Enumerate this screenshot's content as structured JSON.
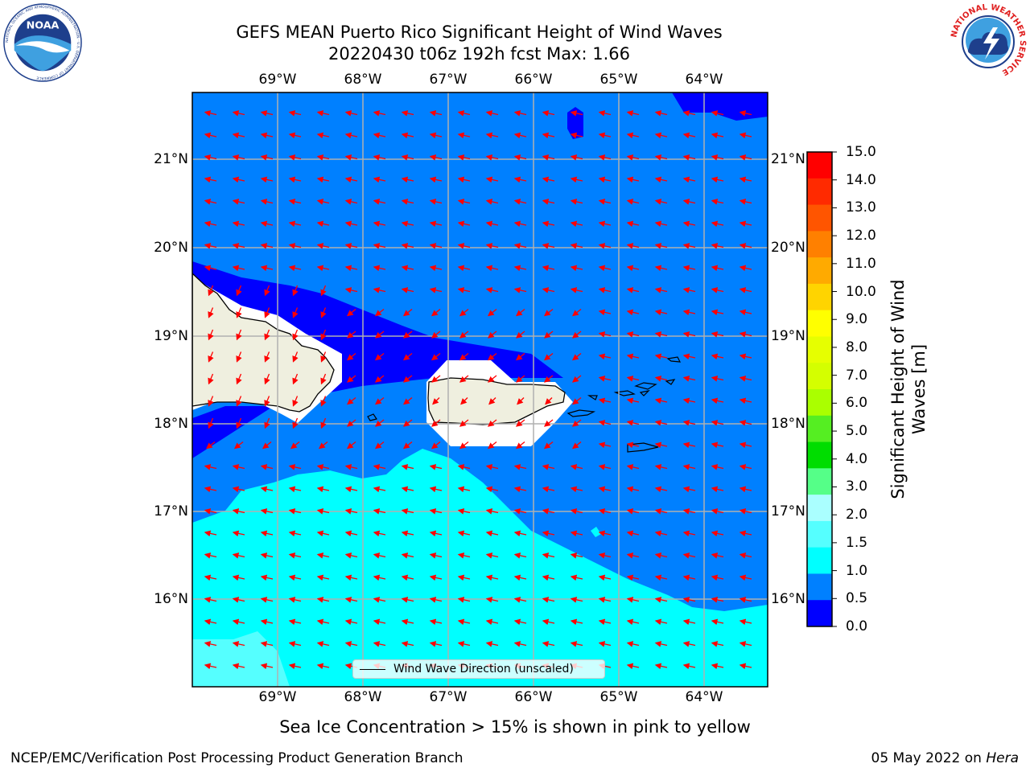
{
  "header": {
    "title_line1": "GEFS MEAN Puerto Rico Significant Height of Wind Waves",
    "title_line2": "20220430 t06z 192h fcst   Max: 1.66"
  },
  "logos": {
    "noaa_text": "NOAA",
    "noaa_ring_text": "NATIONAL OCEANIC AND ATMOSPHERIC ADMINISTRATION · U.S. DEPARTMENT OF COMMERCE",
    "nws_ring_text": "NATIONAL WEATHER SERVICE"
  },
  "map": {
    "lon_labels": [
      "69°W",
      "68°W",
      "67°W",
      "66°W",
      "65°W",
      "64°W"
    ],
    "lat_labels_left": [
      "21°N",
      "20°N",
      "19°N",
      "18°N",
      "17°N",
      "16°N"
    ],
    "lat_labels_right": [
      "21°N",
      "20°N",
      "19°N",
      "18°N",
      "17°N",
      "16°N"
    ],
    "land_color": "#efefdf",
    "arrow_color": "#ff0000",
    "grid_color": "#b0b0b0",
    "legend_label": "Wind Wave Direction (unscaled)"
  },
  "colorbar": {
    "title": "Significant Height of Wind Waves [m]",
    "tick_labels": [
      "15.0",
      "14.0",
      "13.0",
      "12.0",
      "11.0",
      "10.0",
      "9.0",
      "8.0",
      "7.0",
      "6.0",
      "5.0",
      "4.0",
      "3.0",
      "2.0",
      "1.5",
      "1.0",
      "0.5",
      "0.0"
    ],
    "colors": [
      "#ff0000",
      "#ff2a00",
      "#ff5500",
      "#ff8000",
      "#ffaa00",
      "#ffd400",
      "#ffff00",
      "#e6ff00",
      "#d4ff00",
      "#aaff00",
      "#55ee22",
      "#00dd00",
      "#55ff88",
      "#aaffff",
      "#55ffff",
      "#00ffff",
      "#0080ff",
      "#0000ff"
    ]
  },
  "footer": {
    "ice_note": "Sea Ice Concentration > 15% is shown in pink to yellow",
    "left": "NCEP/EMC/Verification Post Processing Product Generation Branch",
    "right_prefix": "05 May 2022 on ",
    "right_host": "Hera"
  }
}
